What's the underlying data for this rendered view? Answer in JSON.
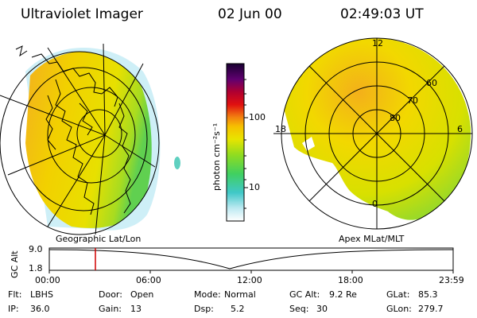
{
  "header": {
    "title": "Ultraviolet Imager",
    "date": "02 Jun 00",
    "time": "02:49:03 UT"
  },
  "colorbar": {
    "unit_label": "photon cm⁻²s⁻¹",
    "ticks": [
      "100",
      "10"
    ]
  },
  "left_map": {
    "caption": "Geographic Lat/Lon"
  },
  "right_map": {
    "caption": "Apex MLat/MLT",
    "mlt_labels": {
      "top": "12",
      "left": "18",
      "right": "6",
      "bottom": "0"
    },
    "lat_labels": [
      "60",
      "70",
      "80"
    ]
  },
  "timeline": {
    "ylabel": "GC Alt",
    "y_ticks": [
      "9.0",
      "1.8"
    ],
    "x_ticks": [
      "00:00",
      "06:00",
      "12:00",
      "18:00",
      "23:59"
    ]
  },
  "params": {
    "row1": [
      {
        "label": "Flt:",
        "value": "LBHS"
      },
      {
        "label": "Door:",
        "value": "Open"
      },
      {
        "label": "Mode:",
        "value": "Normal"
      },
      {
        "label": "GC Alt:",
        "value": "9.2 Re"
      },
      {
        "label": "GLat:",
        "value": "85.3"
      }
    ],
    "row2": [
      {
        "label": "IP:",
        "value": "36.0"
      },
      {
        "label": "Gain:",
        "value": "13"
      },
      {
        "label": "Dsp:",
        "value": "5.2"
      },
      {
        "label": "Seq:",
        "value": "30"
      },
      {
        "label": "GLon:",
        "value": "279.7"
      }
    ]
  },
  "colors": {
    "yellow": "#f2e000",
    "yellow_green": "#c4e000",
    "orange": "#f3a61a",
    "green": "#66d640",
    "cyan": "#3cc8c0",
    "cursor": "#d00000"
  }
}
